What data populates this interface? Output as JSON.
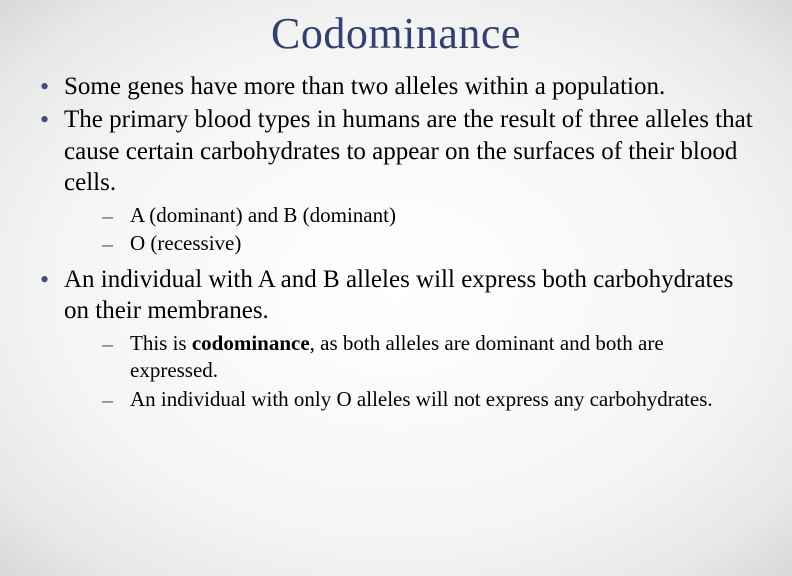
{
  "title": "Codominance",
  "bullets": {
    "b1": "Some genes have more than two alleles within a population.",
    "b2": "The primary blood types in humans are the result of three alleles that cause certain carbohydrates to appear on the surfaces of their blood cells.",
    "b2_sub": {
      "s1": "A (dominant) and B (dominant)",
      "s2": "O (recessive)"
    },
    "b3": "An individual with A and B alleles will express both carbohydrates on their membranes.",
    "b3_sub": {
      "s1_pre": "This is ",
      "s1_bold": "codominance",
      "s1_post": ", as both alleles are dominant and both are expressed.",
      "s2": "An individual with only O alleles will not express any carbohydrates."
    }
  },
  "colors": {
    "title_color": "#33416f",
    "bullet_color": "#3f4e7c",
    "text_color": "#000000"
  }
}
